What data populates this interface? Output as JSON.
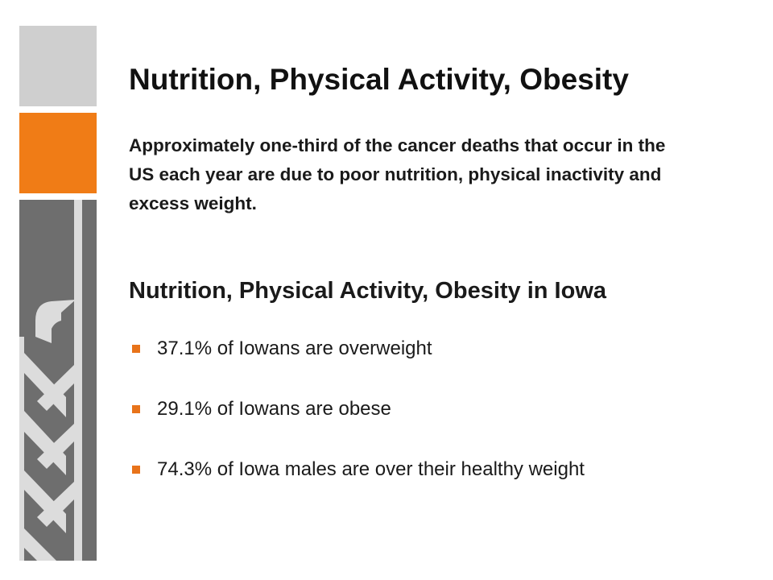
{
  "slide": {
    "title": "Nutrition, Physical Activity, Obesity",
    "intro": "Approximately one-third of the cancer deaths that occur in the US each year are due to poor nutrition, physical inactivity and excess weight.",
    "subtitle": "Nutrition, Physical Activity, Obesity in Iowa",
    "bullets": [
      "37.1% of Iowans are overweight",
      "29.1% of Iowans are obese",
      "74.3% of Iowa males are over their healthy weight"
    ],
    "bullet_icon": "square-bullet-icon"
  },
  "colors": {
    "accent_orange": "#f07c16",
    "sidebar_gray": "#cfcfcf",
    "logo_gray": "#6e6e6e",
    "logo_stripe": "#dcdcdc",
    "bullet": "#e8731a"
  }
}
